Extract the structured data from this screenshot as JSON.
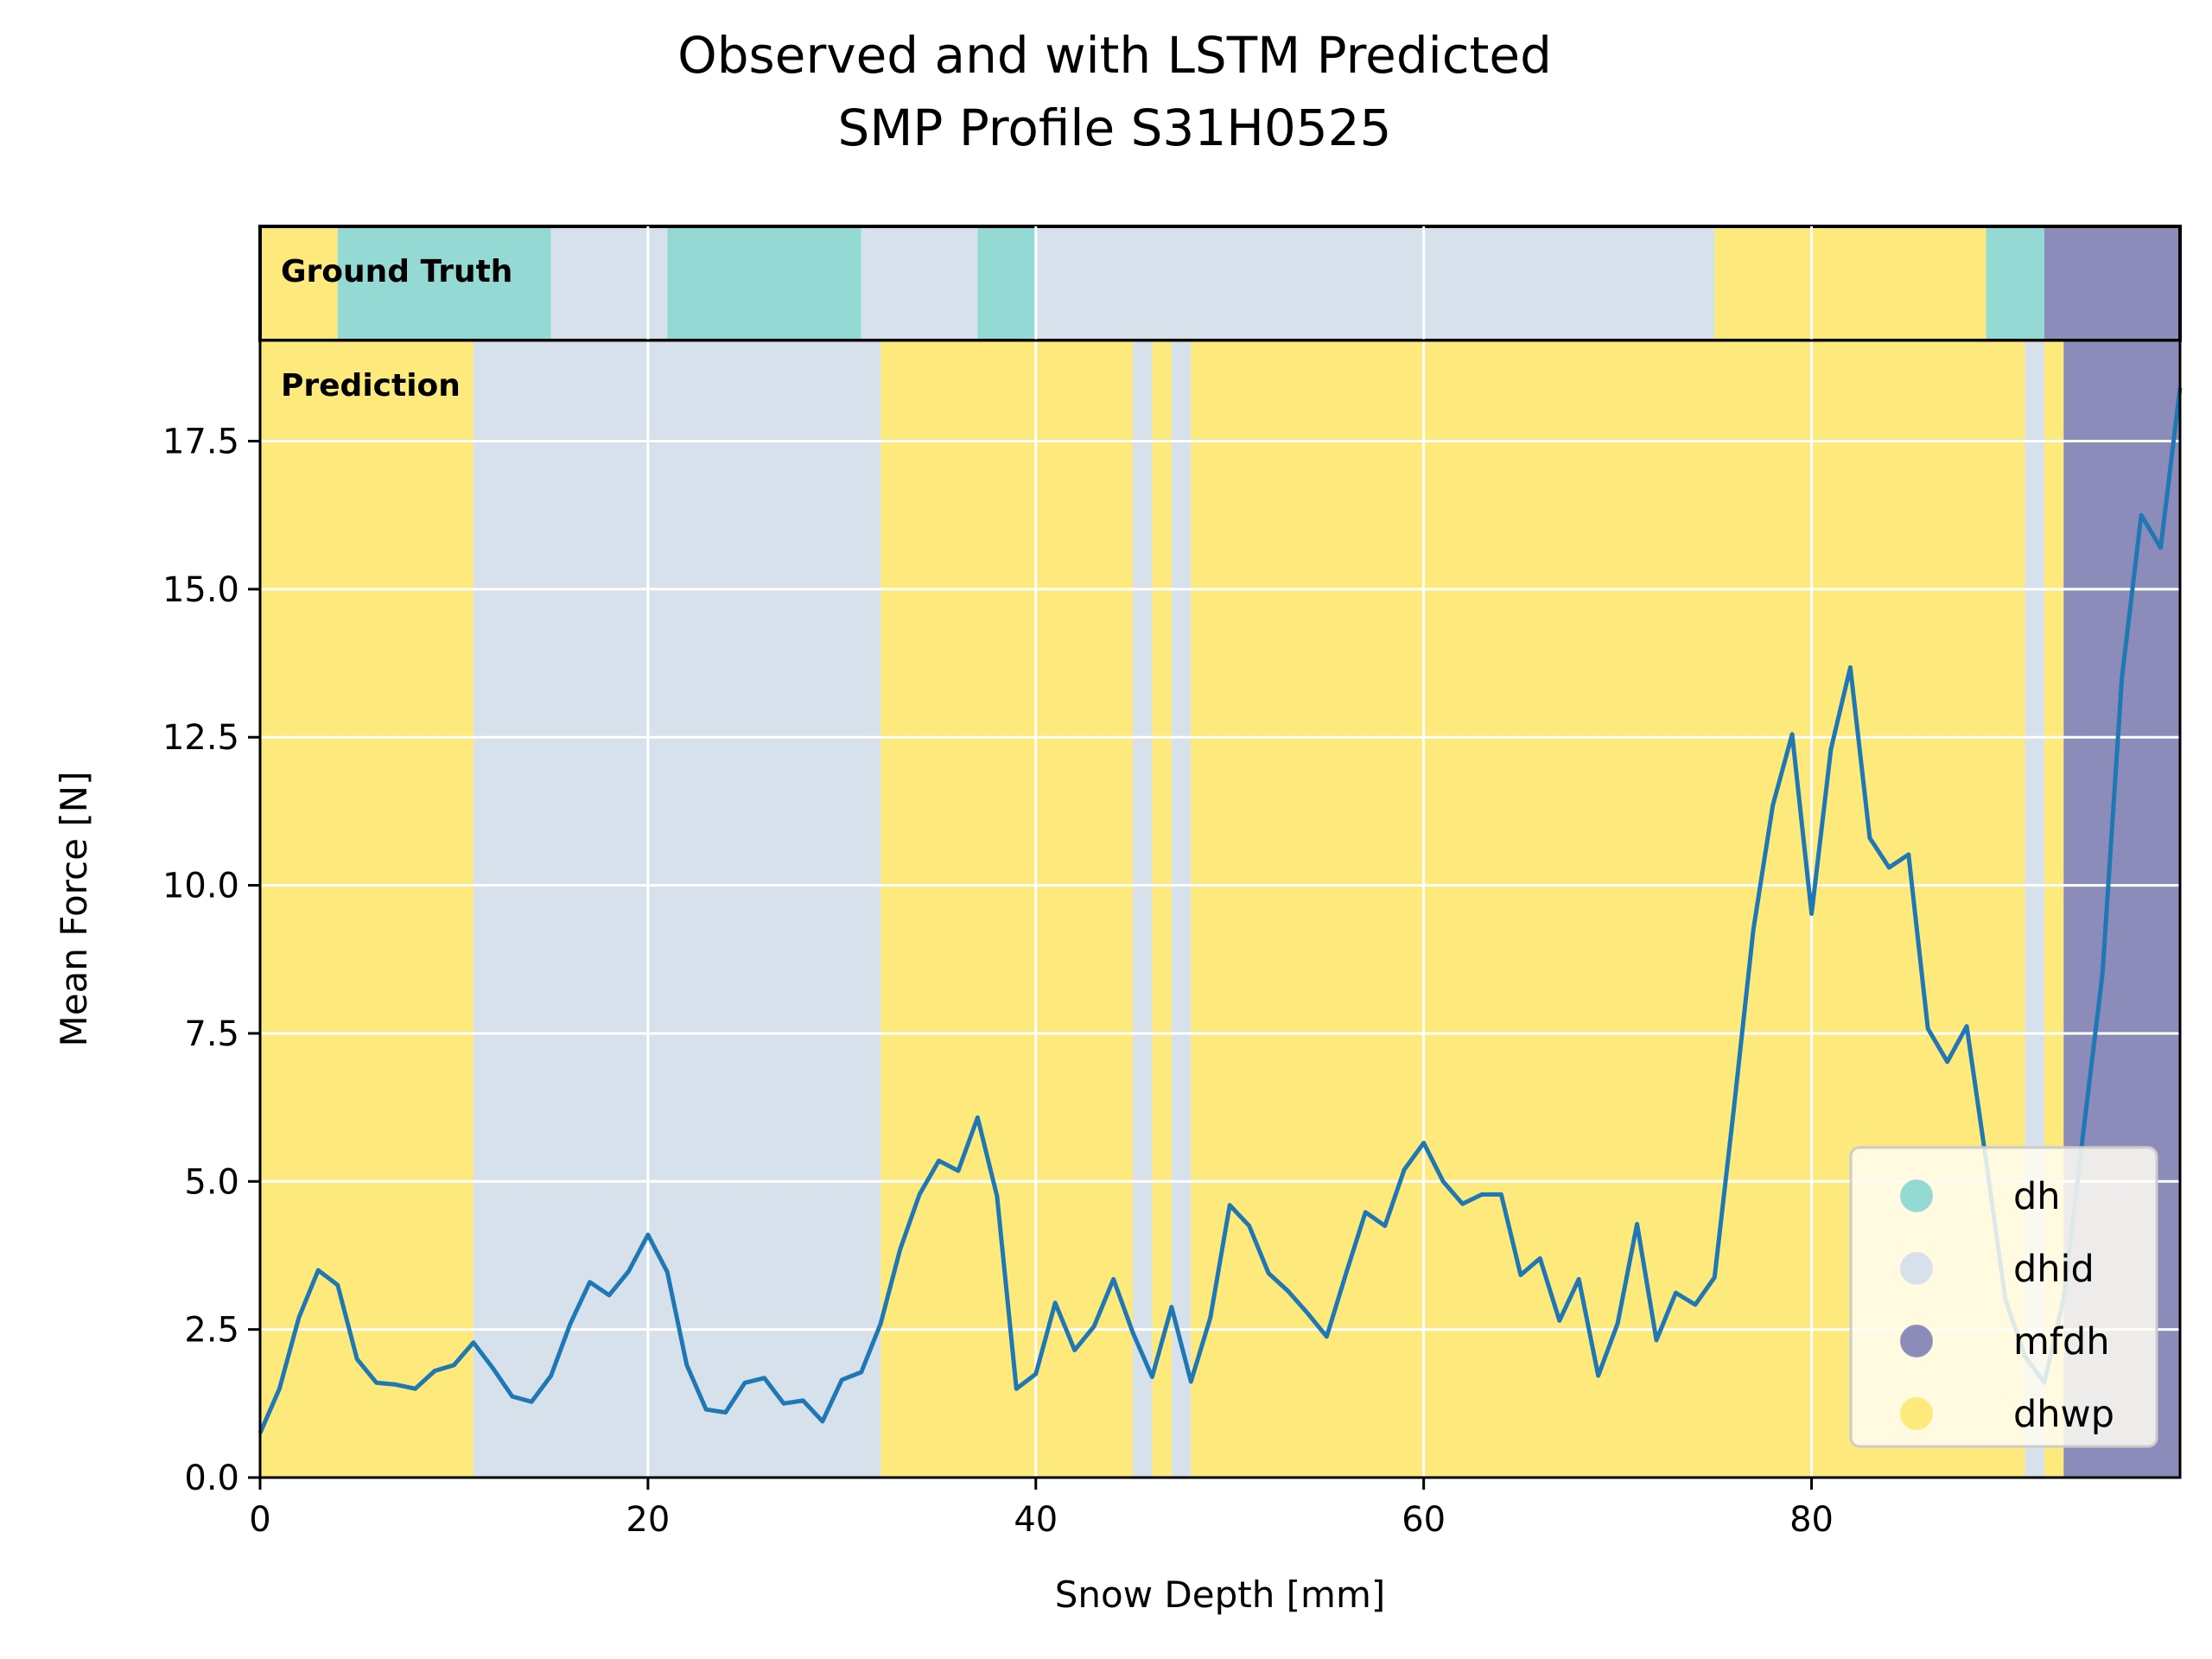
{
  "chart_data": {
    "type": "line",
    "title": "Observed and with LSTM Predicted",
    "subtitle": "SMP Profile S31H0525",
    "xlabel": "Snow Depth [mm]",
    "ylabel": "Mean Force [N]",
    "xlim": [
      0,
      99
    ],
    "ylim": [
      0,
      19.2
    ],
    "x_ticks": [
      "0",
      "20",
      "40",
      "60",
      "80"
    ],
    "x_tick_values": [
      0,
      20,
      40,
      60,
      80
    ],
    "y_ticks": [
      "0.0",
      "2.5",
      "5.0",
      "7.5",
      "10.0",
      "12.5",
      "15.0",
      "17.5"
    ],
    "y_tick_values": [
      0,
      2.5,
      5,
      7.5,
      10,
      12.5,
      15,
      17.5
    ],
    "grid": true,
    "legend_placement": "lower-right",
    "panel_labels": {
      "ground_truth": "Ground Truth",
      "prediction": "Prediction"
    },
    "classes": [
      {
        "name": "dh",
        "color": "#94d9d4"
      },
      {
        "name": "dhid",
        "color": "#d7e1ec"
      },
      {
        "name": "mfdh",
        "color": "#8b8cb9"
      },
      {
        "name": "dhwp",
        "color": "#fde97c"
      }
    ],
    "ground_truth_segments": [
      {
        "start": 0,
        "end": 4,
        "class": "dhwp"
      },
      {
        "start": 4,
        "end": 15,
        "class": "dh"
      },
      {
        "start": 15,
        "end": 21,
        "class": "dhid"
      },
      {
        "start": 21,
        "end": 31,
        "class": "dh"
      },
      {
        "start": 31,
        "end": 37,
        "class": "dhid"
      },
      {
        "start": 37,
        "end": 40,
        "class": "dh"
      },
      {
        "start": 40,
        "end": 75,
        "class": "dhid"
      },
      {
        "start": 75,
        "end": 89,
        "class": "dhwp"
      },
      {
        "start": 89,
        "end": 92,
        "class": "dh"
      },
      {
        "start": 92,
        "end": 99,
        "class": "mfdh"
      }
    ],
    "prediction_segments": [
      {
        "start": 0,
        "end": 11,
        "class": "dhwp"
      },
      {
        "start": 11,
        "end": 32,
        "class": "dhid"
      },
      {
        "start": 32,
        "end": 45,
        "class": "dhwp"
      },
      {
        "start": 45,
        "end": 46,
        "class": "dhid"
      },
      {
        "start": 46,
        "end": 47,
        "class": "dhwp"
      },
      {
        "start": 47,
        "end": 48,
        "class": "dhid"
      },
      {
        "start": 48,
        "end": 91,
        "class": "dhwp"
      },
      {
        "start": 91,
        "end": 92,
        "class": "dhid"
      },
      {
        "start": 92,
        "end": 93,
        "class": "dhwp"
      },
      {
        "start": 93,
        "end": 99,
        "class": "mfdh"
      }
    ],
    "series": [
      {
        "color": "#1f77b4",
        "x": [
          0,
          1,
          2,
          3,
          4,
          5,
          6,
          7,
          8,
          9,
          10,
          11,
          12,
          13,
          14,
          15,
          16,
          17,
          18,
          19,
          20,
          21,
          22,
          23,
          24,
          25,
          26,
          27,
          28,
          29,
          30,
          31,
          32,
          33,
          34,
          35,
          36,
          37,
          38,
          39,
          40,
          41,
          42,
          43,
          44,
          45,
          46,
          47,
          48,
          49,
          50,
          51,
          52,
          53,
          54,
          55,
          56,
          57,
          58,
          59,
          60,
          61,
          62,
          63,
          64,
          65,
          66,
          67,
          68,
          69,
          70,
          71,
          72,
          73,
          74,
          75,
          76,
          77,
          78,
          79,
          80,
          81,
          82,
          83,
          84,
          85,
          86,
          87,
          88,
          89,
          90,
          91,
          92,
          93,
          94,
          95,
          96,
          97,
          98,
          99
        ],
        "y": [
          0.75,
          1.5,
          2.7,
          3.5,
          3.25,
          2.0,
          1.6,
          1.57,
          1.5,
          1.8,
          1.9,
          2.28,
          1.85,
          1.37,
          1.28,
          1.72,
          2.6,
          3.3,
          3.08,
          3.48,
          4.1,
          3.47,
          1.9,
          1.15,
          1.1,
          1.6,
          1.68,
          1.25,
          1.3,
          0.95,
          1.65,
          1.78,
          2.6,
          3.85,
          4.78,
          5.35,
          5.18,
          6.08,
          4.75,
          1.5,
          1.75,
          2.95,
          2.15,
          2.55,
          3.35,
          2.45,
          1.7,
          2.88,
          1.62,
          2.7,
          4.6,
          4.25,
          3.45,
          3.15,
          2.78,
          2.38,
          3.45,
          4.48,
          4.25,
          5.2,
          5.65,
          5.0,
          4.62,
          4.78,
          4.78,
          3.42,
          3.7,
          2.65,
          3.35,
          1.72,
          2.6,
          4.28,
          2.32,
          3.12,
          2.92,
          3.38,
          6.25,
          9.25,
          11.35,
          12.55,
          9.52,
          12.3,
          13.68,
          10.8,
          10.3,
          10.52,
          7.58,
          7.02,
          7.62,
          5.35,
          3.0,
          2.05,
          1.6,
          3.02,
          5.8,
          8.5,
          13.5,
          16.25,
          15.7,
          18.4
        ]
      }
    ]
  }
}
